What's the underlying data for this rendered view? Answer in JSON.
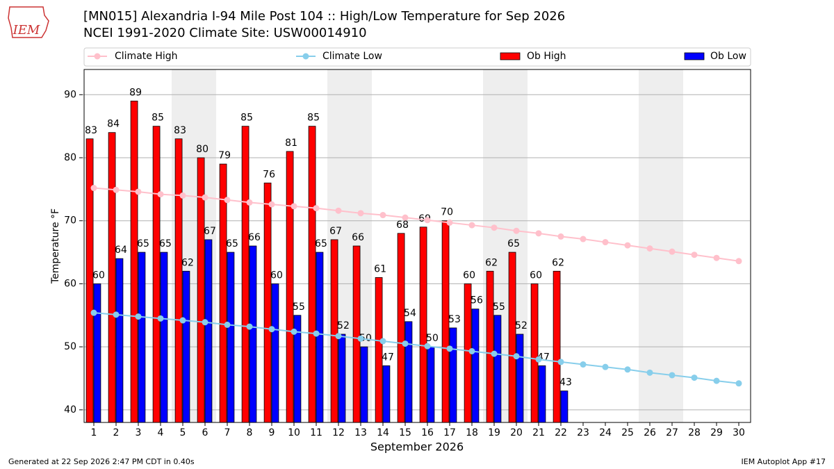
{
  "chart_data": {
    "type": "bar",
    "title": "[MN015] Alexandria I-94 Mile Post 104 :: High/Low Temperature for Sep 2026",
    "subtitle": "NCEI 1991-2020 Climate Site: USW00014910",
    "logo_text": "IEM",
    "xlabel": "September 2026",
    "ylabel": "Temperature °F",
    "footer_left": "Generated at 22 Sep 2026 2:47 PM CDT in 0.40s",
    "footer_right": "IEM Autoplot App #17",
    "x": [
      1,
      2,
      3,
      4,
      5,
      6,
      7,
      8,
      9,
      10,
      11,
      12,
      13,
      14,
      15,
      16,
      17,
      18,
      19,
      20,
      21,
      22,
      23,
      24,
      25,
      26,
      27,
      28,
      29,
      30
    ],
    "xlim": [
      0.5,
      30.5
    ],
    "xticks": [
      1,
      2,
      3,
      4,
      5,
      6,
      7,
      8,
      9,
      10,
      11,
      12,
      13,
      14,
      15,
      16,
      17,
      18,
      19,
      20,
      21,
      22,
      23,
      24,
      25,
      26,
      27,
      28,
      29,
      30
    ],
    "ylim": [
      38,
      94
    ],
    "yticks": [
      40,
      50,
      60,
      70,
      80,
      90
    ],
    "grid": true,
    "shaded_days": [
      5,
      6,
      12,
      13,
      19,
      20,
      26,
      27
    ],
    "series": [
      {
        "name": "Climate High",
        "kind": "line",
        "color": "#ffc0cb",
        "values": [
          75.2,
          74.9,
          74.6,
          74.2,
          74.0,
          73.7,
          73.3,
          72.9,
          72.6,
          72.3,
          72.0,
          71.6,
          71.2,
          70.9,
          70.5,
          70.1,
          69.7,
          69.3,
          68.9,
          68.4,
          68.0,
          67.5,
          67.1,
          66.6,
          66.1,
          65.6,
          65.1,
          64.6,
          64.1,
          63.6
        ]
      },
      {
        "name": "Climate Low",
        "kind": "line",
        "color": "#87ceeb",
        "values": [
          55.4,
          55.1,
          54.8,
          54.5,
          54.2,
          53.9,
          53.5,
          53.2,
          52.8,
          52.4,
          52.1,
          51.7,
          51.3,
          50.9,
          50.5,
          50.1,
          49.7,
          49.3,
          48.9,
          48.5,
          48.0,
          47.6,
          47.2,
          46.8,
          46.4,
          45.9,
          45.5,
          45.1,
          44.6,
          44.2
        ]
      },
      {
        "name": "Ob High",
        "kind": "bar",
        "color": "#ff0000",
        "values": [
          83,
          84,
          89,
          85,
          83,
          80,
          79,
          85,
          76,
          81,
          85,
          67,
          66,
          61,
          68,
          69,
          70,
          60,
          62,
          65,
          60,
          62,
          null,
          null,
          null,
          null,
          null,
          null,
          null,
          null
        ]
      },
      {
        "name": "Ob Low",
        "kind": "bar",
        "color": "#0000ff",
        "values": [
          60,
          64,
          65,
          65,
          62,
          67,
          65,
          66,
          60,
          55,
          65,
          52,
          50,
          47,
          54,
          50,
          53,
          56,
          55,
          52,
          47,
          43,
          null,
          null,
          null,
          null,
          null,
          null,
          null,
          null
        ]
      }
    ]
  }
}
